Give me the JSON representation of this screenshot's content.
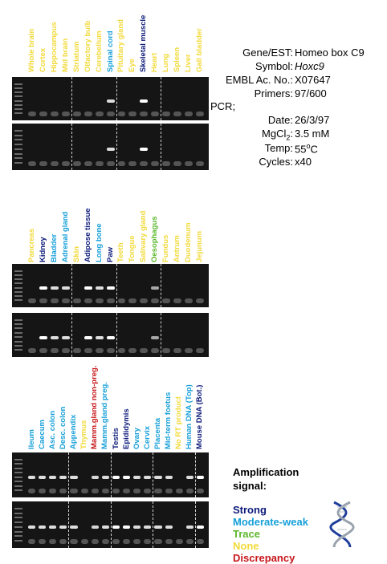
{
  "colors": {
    "strong": "#0c1a7a",
    "moderate_weak": "#17a0d9",
    "trace": "#5bb82b",
    "none": "#f2da3a",
    "discrepancy": "#c8171b"
  },
  "panels": [
    {
      "lanes": [
        {
          "label": "Whole brain",
          "signal": "none"
        },
        {
          "label": "Cortex",
          "signal": "none"
        },
        {
          "label": "Hippocampus",
          "signal": "none"
        },
        {
          "label": "Mid brain",
          "signal": "none"
        },
        {
          "label": "Striatum",
          "signal": "none"
        },
        {
          "label": "Olfactory bulb",
          "signal": "none"
        },
        {
          "label": "Cerebellum",
          "signal": "none"
        },
        {
          "label": "Spinal cord",
          "signal": "moderate_weak"
        },
        {
          "label": "Pituitary gland",
          "signal": "none"
        },
        {
          "label": "Eye",
          "signal": "none"
        },
        {
          "label": "Skeletal muscle",
          "signal": "strong"
        },
        {
          "label": "Heart",
          "signal": "none"
        },
        {
          "label": "Lung",
          "signal": "none"
        },
        {
          "label": "Spleen",
          "signal": "none"
        },
        {
          "label": "Liver",
          "signal": "none"
        },
        {
          "label": "Gall bladder",
          "signal": "none"
        }
      ]
    },
    {
      "lanes": [
        {
          "label": "Pancreas",
          "signal": "none"
        },
        {
          "label": "Kidney",
          "signal": "strong"
        },
        {
          "label": "Bladder",
          "signal": "moderate_weak"
        },
        {
          "label": "Adrenal gland",
          "signal": "moderate_weak"
        },
        {
          "label": "Skin",
          "signal": "none"
        },
        {
          "label": "Adipose tissue",
          "signal": "strong"
        },
        {
          "label": "Long bone",
          "signal": "moderate_weak"
        },
        {
          "label": "Paw",
          "signal": "strong"
        },
        {
          "label": "Teeth",
          "signal": "none"
        },
        {
          "label": "Tongue",
          "signal": "none"
        },
        {
          "label": "Salivary gland",
          "signal": "none"
        },
        {
          "label": "Oesophagus",
          "signal": "trace"
        },
        {
          "label": "Fundus",
          "signal": "none"
        },
        {
          "label": "Antrum",
          "signal": "none"
        },
        {
          "label": "Duodenum",
          "signal": "none"
        },
        {
          "label": "Jejunum",
          "signal": "none"
        }
      ]
    },
    {
      "lanes": [
        {
          "label": "Ileum",
          "signal": "moderate_weak"
        },
        {
          "label": "Caecum",
          "signal": "moderate_weak"
        },
        {
          "label": "Asc. colon",
          "signal": "moderate_weak"
        },
        {
          "label": "Desc. colon",
          "signal": "moderate_weak"
        },
        {
          "label": "Appendix",
          "signal": "moderate_weak"
        },
        {
          "label": "Thymus",
          "signal": "none"
        },
        {
          "label": "Mamm.gland non-preg.",
          "signal": "discrepancy"
        },
        {
          "label": "Mamm.gland preg.",
          "signal": "moderate_weak"
        },
        {
          "label": "Testis",
          "signal": "strong"
        },
        {
          "label": "Epididymis",
          "signal": "strong"
        },
        {
          "label": "Ovary",
          "signal": "moderate_weak"
        },
        {
          "label": "Cervix",
          "signal": "moderate_weak"
        },
        {
          "label": "Placenta",
          "signal": "moderate_weak"
        },
        {
          "label": "Mid-term foetus",
          "signal": "moderate_weak"
        },
        {
          "label": "No RT product",
          "signal": "none"
        },
        {
          "label": "Human DNA (Top)",
          "signal": "moderate_weak"
        },
        {
          "label": "Mouse DNA (Bot.)",
          "signal": "strong"
        }
      ]
    }
  ],
  "info": {
    "gene_key": "Gene/EST:",
    "gene_val": "Homeo box C9",
    "symbol_key": "Symbol:",
    "symbol_val": "Hoxc9",
    "embl_key": "EMBL Ac. No.:",
    "embl_val": "X07647",
    "primers_key": "Primers:",
    "primers_val": "97/600",
    "pcr_label": "PCR;",
    "date_key": "Date:",
    "date_val": "26/3/97",
    "mgcl2_key_pre": "MgCl",
    "mgcl2_key_sub": "2",
    "mgcl2_key_post": ":",
    "mgcl2_val": "3.5 mM",
    "temp_key": "Temp:",
    "temp_val_pre": "55",
    "temp_val_sup": "o",
    "temp_val_post": "C",
    "cycles_key": "Cycles:",
    "cycles_val": "x40"
  },
  "legend": {
    "title_line1": "Amplification",
    "title_line2": "signal:",
    "strong": "Strong",
    "moderate_weak": "Moderate-weak",
    "trace": "Trace",
    "none": "None",
    "discrepancy": "Discrepancy"
  }
}
